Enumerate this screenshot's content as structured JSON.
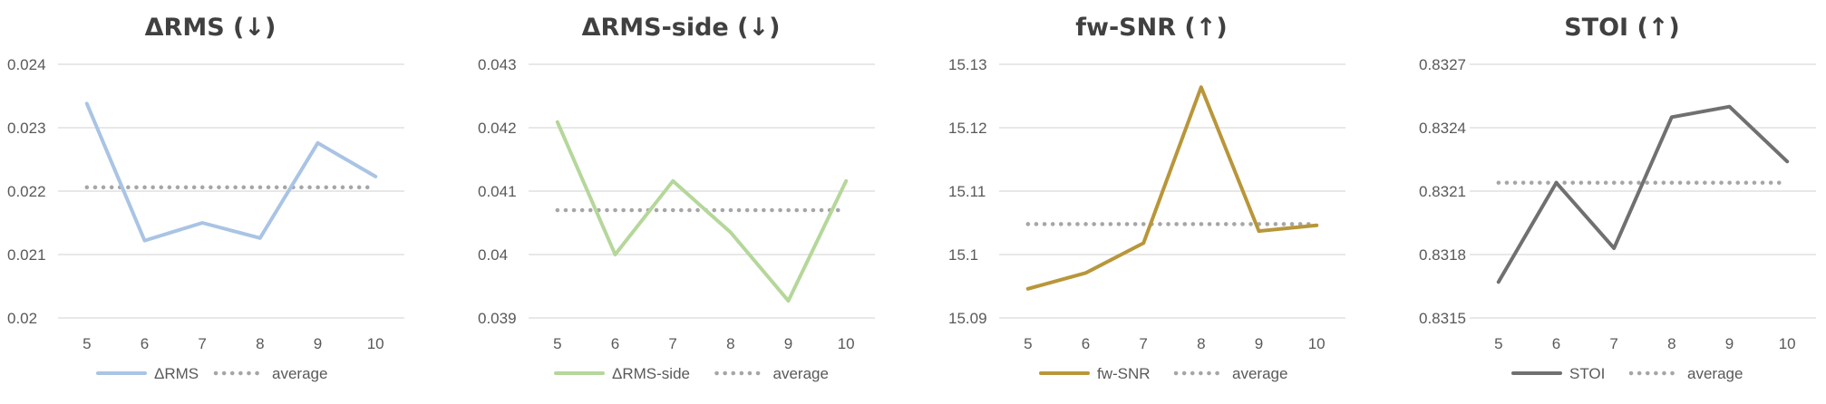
{
  "chart_data": [
    {
      "type": "line",
      "title": "ΔRMS (↓)",
      "x": [
        "5",
        "6",
        "7",
        "8",
        "9",
        "10"
      ],
      "ylim": [
        0.02,
        0.024
      ],
      "yticks": [
        "0.02",
        "0.021",
        "0.022",
        "0.023",
        "0.024"
      ],
      "grid": true,
      "legend_position": "bottom",
      "series": [
        {
          "name": "ΔRMS",
          "color": "#a9c4e4",
          "style": "solid",
          "values": [
            0.02338,
            0.02122,
            0.0215,
            0.02126,
            0.02276,
            0.02223
          ]
        },
        {
          "name": "average",
          "color": "#a6a6a6",
          "style": "dotted",
          "values": [
            0.02206,
            0.02206,
            0.02206,
            0.02206,
            0.02206,
            0.02206
          ]
        }
      ]
    },
    {
      "type": "line",
      "title": "ΔRMS-side (↓)",
      "x": [
        "5",
        "6",
        "7",
        "8",
        "9",
        "10"
      ],
      "ylim": [
        0.039,
        0.043
      ],
      "yticks": [
        "0.039",
        "0.04",
        "0.041",
        "0.042",
        "0.043"
      ],
      "grid": true,
      "legend_position": "bottom",
      "series": [
        {
          "name": "ΔRMS-side",
          "color": "#b5d79a",
          "style": "solid",
          "values": [
            0.04209,
            0.04,
            0.04116,
            0.04035,
            0.03927,
            0.04116
          ]
        },
        {
          "name": "average",
          "color": "#a6a6a6",
          "style": "dotted",
          "values": [
            0.0407,
            0.0407,
            0.0407,
            0.0407,
            0.0407,
            0.0407
          ]
        }
      ]
    },
    {
      "type": "line",
      "title": "fw-SNR (↑)",
      "x": [
        "5",
        "6",
        "7",
        "8",
        "9",
        "10"
      ],
      "ylim": [
        15.09,
        15.13
      ],
      "yticks": [
        "15.09",
        "15.1",
        "15.11",
        "15.12",
        "15.13"
      ],
      "grid": true,
      "legend_position": "bottom",
      "series": [
        {
          "name": "fw-SNR",
          "color": "#b8963a",
          "style": "solid",
          "values": [
            15.0946,
            15.0971,
            15.1018,
            15.1264,
            15.1037,
            15.1046
          ]
        },
        {
          "name": "average",
          "color": "#a6a6a6",
          "style": "dotted",
          "values": [
            15.1048,
            15.1048,
            15.1048,
            15.1048,
            15.1048,
            15.1048
          ]
        }
      ]
    },
    {
      "type": "line",
      "title": "STOI (↑)",
      "x": [
        "5",
        "6",
        "7",
        "8",
        "9",
        "10"
      ],
      "ylim": [
        0.8315,
        0.8327
      ],
      "yticks": [
        "0.8315",
        "0.8318",
        "0.8321",
        "0.8324",
        "0.8327"
      ],
      "grid": true,
      "legend_position": "bottom",
      "series": [
        {
          "name": "STOI",
          "color": "#707070",
          "style": "solid",
          "values": [
            0.83167,
            0.83214,
            0.83183,
            0.83245,
            0.8325,
            0.83224
          ]
        },
        {
          "name": "average",
          "color": "#a6a6a6",
          "style": "dotted",
          "values": [
            0.83214,
            0.83214,
            0.83214,
            0.83214,
            0.83214,
            0.83214
          ]
        }
      ]
    }
  ]
}
